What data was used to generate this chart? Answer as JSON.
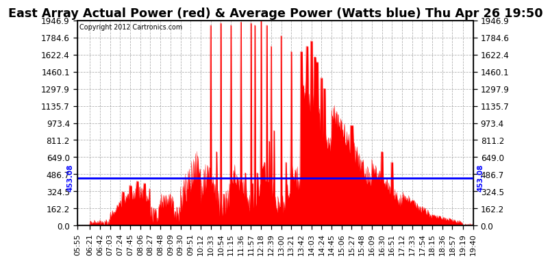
{
  "title": "East Array Actual Power (red) & Average Power (Watts blue) Thu Apr 26 19:50",
  "copyright": "Copyright 2012 Cartronics.com",
  "avg_power": 453.08,
  "y_max": 1946.9,
  "y_min": 0.0,
  "y_ticks": [
    0.0,
    162.2,
    324.5,
    486.7,
    649.0,
    811.2,
    973.4,
    1135.7,
    1297.9,
    1460.1,
    1622.4,
    1784.6,
    1946.9
  ],
  "avg_label": "453.08",
  "bar_color": "#FF0000",
  "line_color": "#0000FF",
  "bg_color": "#FFFFFF",
  "grid_color": "#999999",
  "title_fontsize": 11,
  "tick_fontsize": 7.5,
  "x_tick_labels": [
    "05:55",
    "06:21",
    "06:42",
    "07:03",
    "07:24",
    "07:45",
    "08:06",
    "08:27",
    "08:48",
    "09:09",
    "09:30",
    "09:51",
    "10:12",
    "10:33",
    "10:54",
    "11:15",
    "11:36",
    "11:57",
    "12:18",
    "12:39",
    "13:00",
    "13:21",
    "13:42",
    "14:03",
    "14:24",
    "14:45",
    "15:06",
    "15:27",
    "15:48",
    "16:09",
    "16:30",
    "16:51",
    "17:12",
    "17:33",
    "17:54",
    "18:15",
    "18:36",
    "18:57",
    "19:19",
    "19:40"
  ]
}
